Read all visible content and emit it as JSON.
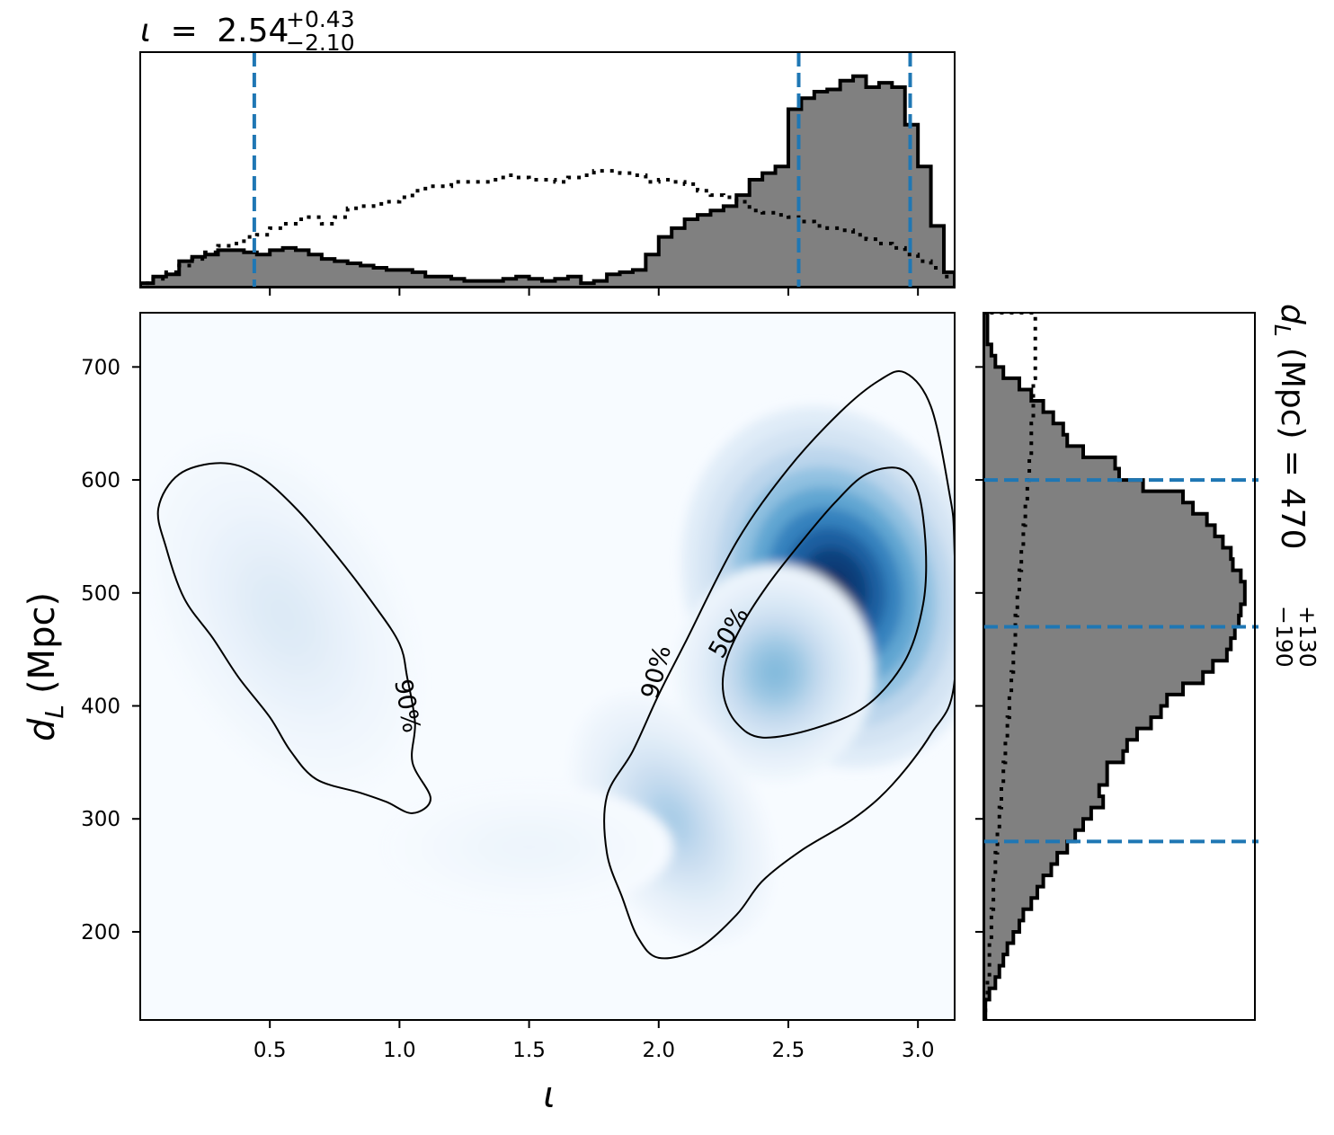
{
  "chart_data": [
    {
      "type": "heatmap",
      "panel": "joint",
      "x_param": "ι",
      "y_param": "d_L",
      "xlabel": "ι",
      "ylabel_symbol": "d",
      "ylabel_sub": "L",
      "ylabel_unit": "(Mpc)",
      "xlim": [
        0.0,
        3.1416
      ],
      "ylim": [
        122,
        748
      ],
      "x_ticks": [
        0.5,
        1.0,
        1.5,
        2.0,
        2.5,
        3.0
      ],
      "x_tick_labels": [
        "0.5",
        "1.0",
        "1.5",
        "2.0",
        "2.5",
        "3.0"
      ],
      "y_ticks": [
        200,
        300,
        400,
        500,
        600,
        700
      ],
      "y_tick_labels": [
        "200",
        "300",
        "400",
        "500",
        "600",
        "700"
      ],
      "colormap": "Blues",
      "density_modes": [
        {
          "x": 2.68,
          "y": 505,
          "weight": 1.0
        },
        {
          "x": 2.45,
          "y": 430,
          "weight": 0.42
        },
        {
          "x": 2.05,
          "y": 300,
          "weight": 0.32
        },
        {
          "x": 0.55,
          "y": 480,
          "weight": 0.13
        },
        {
          "x": 1.5,
          "y": 275,
          "weight": 0.05
        }
      ],
      "contours": [
        {
          "level": "90%",
          "region": "left",
          "points": [
            [
              0.31,
              615
            ],
            [
              0.45,
              605
            ],
            [
              0.6,
              575
            ],
            [
              0.75,
              535
            ],
            [
              0.9,
              490
            ],
            [
              1.0,
              455
            ],
            [
              1.03,
              425
            ],
            [
              1.06,
              385
            ],
            [
              1.05,
              350
            ],
            [
              1.12,
              318
            ],
            [
              1.05,
              305
            ],
            [
              0.95,
              315
            ],
            [
              0.85,
              323
            ],
            [
              0.68,
              335
            ],
            [
              0.58,
              360
            ],
            [
              0.5,
              390
            ],
            [
              0.38,
              425
            ],
            [
              0.28,
              460
            ],
            [
              0.17,
              495
            ],
            [
              0.1,
              540
            ],
            [
              0.07,
              575
            ],
            [
              0.15,
              605
            ]
          ]
        },
        {
          "level": "90%",
          "region": "right",
          "points": [
            [
              2.0,
              177
            ],
            [
              2.15,
              185
            ],
            [
              2.3,
              215
            ],
            [
              2.4,
              245
            ],
            [
              2.55,
              272
            ],
            [
              2.75,
              300
            ],
            [
              2.9,
              330
            ],
            [
              3.05,
              375
            ],
            [
              3.14,
              420
            ],
            [
              3.14,
              545
            ],
            [
              3.12,
              590
            ],
            [
              3.05,
              665
            ],
            [
              2.95,
              695
            ],
            [
              2.85,
              688
            ],
            [
              2.7,
              660
            ],
            [
              2.5,
              610
            ],
            [
              2.3,
              545
            ],
            [
              2.1,
              455
            ],
            [
              2.0,
              410
            ],
            [
              1.9,
              360
            ],
            [
              1.8,
              320
            ],
            [
              1.8,
              270
            ],
            [
              1.86,
              230
            ],
            [
              1.92,
              195
            ]
          ]
        },
        {
          "level": "50%",
          "region": "right",
          "points": [
            [
              2.4,
              372
            ],
            [
              2.6,
              380
            ],
            [
              2.8,
              400
            ],
            [
              2.95,
              440
            ],
            [
              3.02,
              490
            ],
            [
              3.03,
              540
            ],
            [
              3.0,
              590
            ],
            [
              2.93,
              610
            ],
            [
              2.8,
              605
            ],
            [
              2.68,
              580
            ],
            [
              2.55,
              545
            ],
            [
              2.43,
              510
            ],
            [
              2.33,
              475
            ],
            [
              2.26,
              440
            ],
            [
              2.25,
              410
            ],
            [
              2.3,
              385
            ]
          ]
        }
      ],
      "contour_labels": [
        {
          "text": "90%",
          "x": 1.03,
          "y": 400,
          "angle": 80
        },
        {
          "text": "90%",
          "x": 1.99,
          "y": 430,
          "angle": -75
        },
        {
          "text": "50%",
          "x": 2.27,
          "y": 465,
          "angle": -60
        }
      ]
    },
    {
      "type": "histogram",
      "panel": "top-marginal",
      "parameter": "ι",
      "title_symbol": "ι",
      "title_equals": "=",
      "title_median": "2.54",
      "title_upper": "+0.43",
      "title_lower": "−2.10",
      "xlim": [
        0.0,
        3.1416
      ],
      "ylim": [
        0,
        1.0
      ],
      "median": 2.54,
      "lower_bound": 0.44,
      "upper_bound": 2.97,
      "bins": [
        0.0,
        0.05,
        0.1,
        0.15,
        0.2,
        0.25,
        0.3,
        0.35,
        0.4,
        0.45,
        0.5,
        0.55,
        0.6,
        0.65,
        0.7,
        0.75,
        0.8,
        0.85,
        0.9,
        0.95,
        1.0,
        1.05,
        1.1,
        1.15,
        1.2,
        1.25,
        1.3,
        1.35,
        1.4,
        1.45,
        1.5,
        1.55,
        1.6,
        1.65,
        1.7,
        1.75,
        1.8,
        1.85,
        1.9,
        1.95,
        2.0,
        2.05,
        2.1,
        2.15,
        2.2,
        2.25,
        2.3,
        2.35,
        2.4,
        2.45,
        2.5,
        2.55,
        2.6,
        2.65,
        2.7,
        2.75,
        2.8,
        2.85,
        2.9,
        2.95,
        3.0,
        3.05,
        3.1,
        3.1416
      ],
      "posterior": [
        0.02,
        0.05,
        0.06,
        0.12,
        0.14,
        0.15,
        0.17,
        0.17,
        0.16,
        0.15,
        0.17,
        0.18,
        0.17,
        0.15,
        0.13,
        0.12,
        0.11,
        0.1,
        0.09,
        0.08,
        0.08,
        0.07,
        0.05,
        0.05,
        0.04,
        0.03,
        0.03,
        0.03,
        0.04,
        0.05,
        0.04,
        0.03,
        0.04,
        0.05,
        0.02,
        0.03,
        0.06,
        0.07,
        0.08,
        0.15,
        0.23,
        0.27,
        0.31,
        0.33,
        0.35,
        0.37,
        0.42,
        0.49,
        0.52,
        0.55,
        0.81,
        0.86,
        0.89,
        0.9,
        0.94,
        0.96,
        0.91,
        0.93,
        0.91,
        0.74,
        0.55,
        0.28,
        0.07
      ],
      "prior": [
        0.02,
        0.04,
        0.07,
        0.1,
        0.13,
        0.16,
        0.19,
        0.2,
        0.23,
        0.24,
        0.27,
        0.29,
        0.31,
        0.32,
        0.29,
        0.32,
        0.36,
        0.37,
        0.38,
        0.39,
        0.41,
        0.44,
        0.46,
        0.46,
        0.48,
        0.48,
        0.48,
        0.49,
        0.51,
        0.5,
        0.49,
        0.49,
        0.48,
        0.5,
        0.51,
        0.53,
        0.53,
        0.52,
        0.51,
        0.48,
        0.49,
        0.48,
        0.47,
        0.44,
        0.42,
        0.41,
        0.39,
        0.35,
        0.34,
        0.33,
        0.32,
        0.3,
        0.28,
        0.27,
        0.26,
        0.24,
        0.22,
        0.2,
        0.18,
        0.15,
        0.12,
        0.09,
        0.05
      ]
    },
    {
      "type": "histogram",
      "panel": "right-marginal",
      "parameter": "d_L",
      "orientation": "horizontal",
      "title_symbol": "d",
      "title_sub": "L",
      "title_unit": "(Mpc)",
      "title_equals": "=",
      "title_median": "470",
      "title_upper": "+130",
      "title_lower": "−190",
      "ylim": [
        122,
        748
      ],
      "xlim": [
        0,
        1.0
      ],
      "median": 470,
      "lower_bound": 280,
      "upper_bound": 600,
      "bins": [
        122,
        140,
        150,
        160,
        170,
        180,
        190,
        200,
        210,
        220,
        230,
        240,
        250,
        260,
        270,
        280,
        290,
        300,
        310,
        320,
        330,
        340,
        350,
        360,
        370,
        380,
        390,
        400,
        410,
        420,
        430,
        440,
        450,
        460,
        470,
        480,
        490,
        500,
        510,
        520,
        530,
        540,
        550,
        560,
        570,
        580,
        590,
        600,
        610,
        620,
        630,
        640,
        650,
        660,
        670,
        680,
        690,
        700,
        710,
        720,
        748
      ],
      "posterior": [
        0.01,
        0.03,
        0.06,
        0.08,
        0.1,
        0.12,
        0.15,
        0.18,
        0.2,
        0.24,
        0.27,
        0.3,
        0.34,
        0.37,
        0.42,
        0.46,
        0.5,
        0.54,
        0.6,
        0.58,
        0.62,
        0.62,
        0.7,
        0.72,
        0.77,
        0.84,
        0.89,
        0.92,
        1.0,
        1.1,
        1.15,
        1.22,
        1.24,
        1.26,
        1.28,
        1.29,
        1.31,
        1.31,
        1.29,
        1.25,
        1.24,
        1.2,
        1.16,
        1.12,
        1.05,
        1.0,
        0.8,
        0.68,
        0.66,
        0.5,
        0.42,
        0.4,
        0.35,
        0.3,
        0.24,
        0.18,
        0.1,
        0.06,
        0.04,
        0.02
      ],
      "prior": [
        0.01,
        0.02,
        0.02,
        0.03,
        0.03,
        0.03,
        0.04,
        0.04,
        0.04,
        0.05,
        0.05,
        0.05,
        0.06,
        0.06,
        0.07,
        0.07,
        0.08,
        0.08,
        0.09,
        0.09,
        0.1,
        0.1,
        0.11,
        0.11,
        0.12,
        0.12,
        0.13,
        0.13,
        0.14,
        0.14,
        0.15,
        0.15,
        0.16,
        0.16,
        0.16,
        0.17,
        0.17,
        0.18,
        0.18,
        0.19,
        0.19,
        0.2,
        0.2,
        0.21,
        0.21,
        0.22,
        0.22,
        0.23,
        0.23,
        0.24,
        0.24,
        0.24,
        0.25,
        0.25,
        0.25,
        0.25,
        0.26,
        0.26,
        0.26,
        0.26
      ]
    }
  ]
}
